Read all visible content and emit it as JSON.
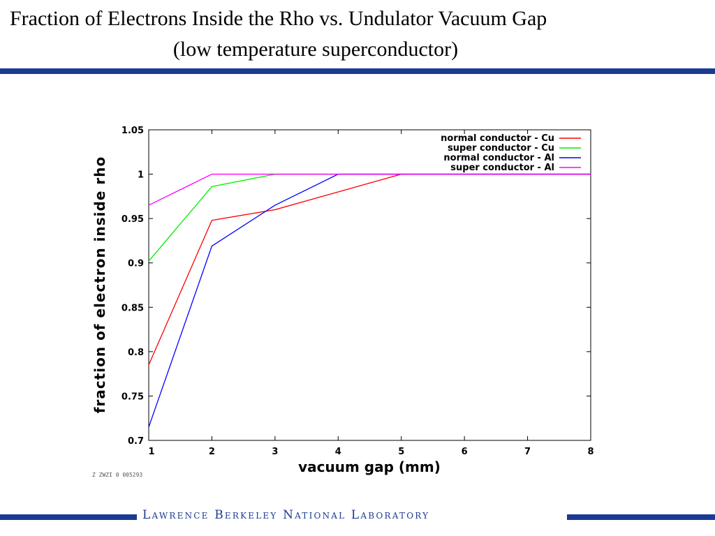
{
  "slide": {
    "title_line1": "Fraction of Electrons Inside the Rho vs. Undulator Vacuum Gap",
    "title_line2": "(low temperature superconductor)",
    "footer": "Lawrence Berkeley National Laboratory",
    "stamp": "Z ZWZI 0 005293",
    "accent_color": "#1b3a93"
  },
  "chart_data": {
    "type": "line",
    "xlabel": "vacuum gap (mm)",
    "ylabel": "fraction of electron inside rho",
    "xlim": [
      1,
      8
    ],
    "ylim": [
      0.7,
      1.05
    ],
    "xticks": [
      "1",
      "2",
      "3",
      "4",
      "5",
      "6",
      "7",
      "8"
    ],
    "yticks": [
      "0.7",
      "0.75",
      "0.8",
      "0.85",
      "0.9",
      "0.95",
      "1",
      "1.05"
    ],
    "legend_position": "top-right",
    "grid": false,
    "series": [
      {
        "name": "normal conductor - Cu",
        "color": "#ff0000",
        "x": [
          1,
          2,
          3,
          4,
          5,
          6,
          7,
          8
        ],
        "y": [
          0.785,
          0.948,
          0.96,
          0.98,
          1.0,
          1.0,
          1.0,
          1.0
        ]
      },
      {
        "name": "super conductor - Cu",
        "color": "#00ee00",
        "x": [
          1,
          2,
          3,
          4,
          5,
          6,
          7,
          8
        ],
        "y": [
          0.902,
          0.986,
          1.0,
          1.0,
          1.0,
          1.0,
          1.0,
          1.0
        ]
      },
      {
        "name": "normal conductor - Al",
        "color": "#0000ff",
        "x": [
          1,
          2,
          3,
          4,
          5,
          6,
          7,
          8
        ],
        "y": [
          0.715,
          0.919,
          0.965,
          1.0,
          1.0,
          1.0,
          1.0,
          1.0
        ]
      },
      {
        "name": "super conductor - Al",
        "color": "#ff00ff",
        "x": [
          1,
          2,
          3,
          4,
          5,
          6,
          7,
          8
        ],
        "y": [
          0.965,
          1.0,
          1.0,
          1.0,
          1.0,
          1.0,
          1.0,
          1.0
        ]
      }
    ]
  }
}
